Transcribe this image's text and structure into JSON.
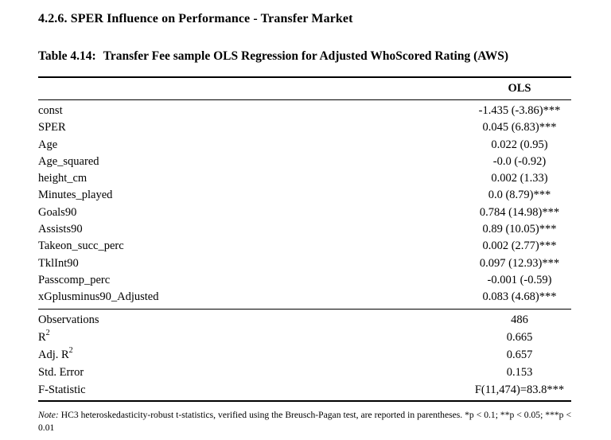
{
  "page": {
    "section_heading": "4.2.6. SPER Influence on Performance - Transfer Market",
    "caption_label": "Table 4.14:",
    "caption_text": "Transfer Fee sample OLS Regression for Adjusted WhoScored Rating (AWS)"
  },
  "table": {
    "column_header": "OLS",
    "rows": [
      {
        "label": "const",
        "value": "-1.435 (-3.86)***"
      },
      {
        "label": "SPER",
        "value": "0.045 (6.83)***"
      },
      {
        "label": "Age",
        "value": "0.022 (0.95)"
      },
      {
        "label": "Age_squared",
        "value": "-0.0 (-0.92)"
      },
      {
        "label": "height_cm",
        "value": "0.002 (1.33)"
      },
      {
        "label": "Minutes_played",
        "value": "0.0 (8.79)***"
      },
      {
        "label": "Goals90",
        "value": "0.784 (14.98)***"
      },
      {
        "label": "Assists90",
        "value": "0.89 (10.05)***"
      },
      {
        "label": "Takeon_succ_perc",
        "value": "0.002 (2.77)***"
      },
      {
        "label": "TklInt90",
        "value": "0.097 (12.93)***"
      },
      {
        "label": "Passcomp_perc",
        "value": "-0.001 (-0.59)"
      },
      {
        "label": "xGplusminus90_Adjusted",
        "value": "0.083 (4.68)***"
      }
    ],
    "stats": [
      {
        "label": "Observations",
        "sup": "",
        "value": "486"
      },
      {
        "label": "R",
        "sup": "2",
        "value": "0.665"
      },
      {
        "label": "Adj. R",
        "sup": "2",
        "value": "0.657"
      },
      {
        "label": "Std. Error",
        "sup": "",
        "value": "0.153"
      },
      {
        "label": "F-Statistic",
        "sup": "",
        "value": "F(11,474)=83.8***"
      }
    ]
  },
  "note": {
    "label": "Note:",
    "text": "HC3 heteroskedasticity-robust t-statistics, verified using the Breusch-Pagan test, are reported in parentheses. *p < 0.1; **p < 0.05; ***p < 0.01"
  }
}
